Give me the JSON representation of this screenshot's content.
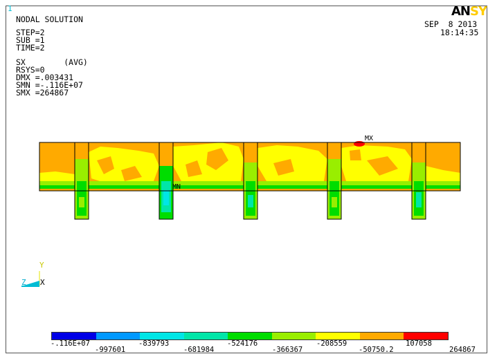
{
  "window": {
    "number": "1"
  },
  "logo": {
    "part1": "AN",
    "part2": "SY"
  },
  "title": "NODAL SOLUTION",
  "info_lines": [
    "STEP=2",
    "SUB =1",
    "TIME=2",
    "SX        (AVG)",
    "RSYS=0",
    "DMX =.003431",
    "SMN =-.116E+07",
    "SMX =264867"
  ],
  "date": "SEP  8 2013",
  "time": "18:14:35",
  "markers": {
    "max": "MX",
    "min": "MN"
  },
  "triad": {
    "y": "Y",
    "z": "Z",
    "x": "X"
  },
  "legend": {
    "colors": [
      "#0000e6",
      "#0099ff",
      "#00e6e6",
      "#00e6a8",
      "#00dd00",
      "#99ee00",
      "#ffff00",
      "#ffaa00",
      "#ff0000"
    ],
    "labels_top": [
      "-.116E+07",
      "-839793",
      "-524176",
      "-208559",
      "107058"
    ],
    "labels_bottom": [
      "-997601",
      "-681984",
      "-366367",
      "-50750.2",
      "264867"
    ]
  }
}
